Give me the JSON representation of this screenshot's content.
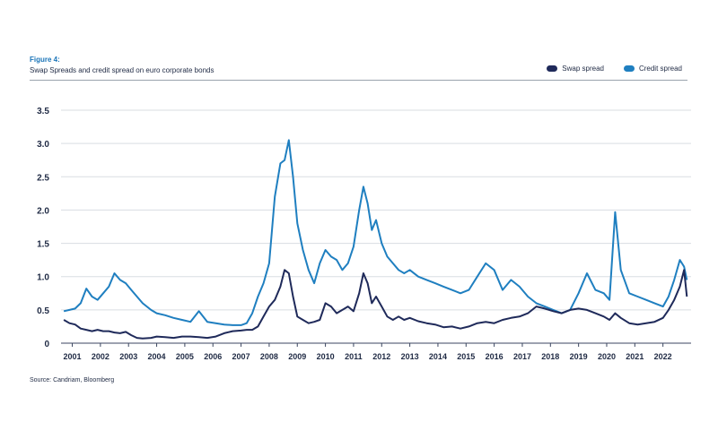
{
  "header": {
    "figure_label": "Figure 4:",
    "title": "Swap Spreads and credit spread on euro corporate bonds"
  },
  "source": "Source: Candriam, Bloomberg",
  "colors": {
    "swap": "#1f2a5a",
    "credit": "#1f7fc0",
    "grid": "#d9dde2"
  },
  "chart_data": {
    "type": "line",
    "title": "Swap Spreads and credit spread on euro corporate bonds",
    "xlabel": "",
    "ylabel": "",
    "xlim": [
      2000.6,
      2023.0
    ],
    "ylim": [
      0,
      3.5
    ],
    "yticks": [
      "0",
      "0.5",
      "1.0",
      "1.5",
      "2.0",
      "2.5",
      "3.0",
      "3.5"
    ],
    "xticks": [
      "2001",
      "2002",
      "2003",
      "2004",
      "2005",
      "2006",
      "2007",
      "2008",
      "2009",
      "2010",
      "2011",
      "2012",
      "2013",
      "2014",
      "2015",
      "2016",
      "2017",
      "2018",
      "2019",
      "2020",
      "2021",
      "2022"
    ],
    "legend_position": "top-right",
    "series": [
      {
        "name": "Swap spread",
        "x": [
          2000.7,
          2000.9,
          2001.1,
          2001.3,
          2001.5,
          2001.7,
          2001.9,
          2002.1,
          2002.3,
          2002.5,
          2002.7,
          2002.9,
          2003.1,
          2003.3,
          2003.5,
          2003.8,
          2004.0,
          2004.3,
          2004.6,
          2004.9,
          2005.2,
          2005.5,
          2005.8,
          2006.1,
          2006.4,
          2006.7,
          2007.0,
          2007.2,
          2007.4,
          2007.6,
          2007.8,
          2008.0,
          2008.2,
          2008.4,
          2008.55,
          2008.7,
          2008.85,
          2009.0,
          2009.2,
          2009.4,
          2009.6,
          2009.8,
          2010.0,
          2010.2,
          2010.4,
          2010.6,
          2010.8,
          2011.0,
          2011.2,
          2011.35,
          2011.5,
          2011.65,
          2011.8,
          2012.0,
          2012.2,
          2012.4,
          2012.6,
          2012.8,
          2013.0,
          2013.3,
          2013.6,
          2013.9,
          2014.2,
          2014.5,
          2014.8,
          2015.1,
          2015.4,
          2015.7,
          2016.0,
          2016.3,
          2016.6,
          2016.9,
          2017.2,
          2017.5,
          2017.8,
          2018.1,
          2018.4,
          2018.7,
          2019.0,
          2019.3,
          2019.6,
          2019.9,
          2020.1,
          2020.3,
          2020.5,
          2020.8,
          2021.1,
          2021.4,
          2021.7,
          2022.0,
          2022.2,
          2022.4,
          2022.6,
          2022.75,
          2022.85
        ],
        "values": [
          0.35,
          0.3,
          0.28,
          0.22,
          0.2,
          0.18,
          0.2,
          0.18,
          0.18,
          0.16,
          0.15,
          0.17,
          0.12,
          0.08,
          0.07,
          0.08,
          0.1,
          0.09,
          0.08,
          0.1,
          0.1,
          0.09,
          0.08,
          0.1,
          0.15,
          0.18,
          0.19,
          0.2,
          0.2,
          0.25,
          0.4,
          0.55,
          0.65,
          0.85,
          1.1,
          1.05,
          0.7,
          0.4,
          0.35,
          0.3,
          0.32,
          0.35,
          0.6,
          0.55,
          0.45,
          0.5,
          0.55,
          0.48,
          0.75,
          1.05,
          0.9,
          0.6,
          0.7,
          0.55,
          0.4,
          0.35,
          0.4,
          0.35,
          0.38,
          0.33,
          0.3,
          0.28,
          0.24,
          0.25,
          0.22,
          0.25,
          0.3,
          0.32,
          0.3,
          0.35,
          0.38,
          0.4,
          0.45,
          0.55,
          0.52,
          0.48,
          0.45,
          0.5,
          0.52,
          0.5,
          0.45,
          0.4,
          0.35,
          0.45,
          0.38,
          0.3,
          0.28,
          0.3,
          0.32,
          0.38,
          0.5,
          0.65,
          0.85,
          1.1,
          0.7
        ]
      },
      {
        "name": "Credit spread",
        "x": [
          2000.7,
          2000.9,
          2001.1,
          2001.3,
          2001.5,
          2001.7,
          2001.9,
          2002.1,
          2002.3,
          2002.5,
          2002.7,
          2002.9,
          2003.1,
          2003.3,
          2003.5,
          2003.8,
          2004.0,
          2004.3,
          2004.6,
          2004.9,
          2005.2,
          2005.5,
          2005.8,
          2006.1,
          2006.4,
          2006.7,
          2007.0,
          2007.2,
          2007.4,
          2007.6,
          2007.8,
          2008.0,
          2008.2,
          2008.4,
          2008.55,
          2008.7,
          2008.85,
          2009.0,
          2009.2,
          2009.4,
          2009.6,
          2009.8,
          2010.0,
          2010.2,
          2010.4,
          2010.6,
          2010.8,
          2011.0,
          2011.2,
          2011.35,
          2011.5,
          2011.65,
          2011.8,
          2012.0,
          2012.2,
          2012.4,
          2012.6,
          2012.8,
          2013.0,
          2013.3,
          2013.6,
          2013.9,
          2014.2,
          2014.5,
          2014.8,
          2015.1,
          2015.4,
          2015.7,
          2016.0,
          2016.3,
          2016.6,
          2016.9,
          2017.2,
          2017.5,
          2017.8,
          2018.1,
          2018.4,
          2018.7,
          2019.0,
          2019.3,
          2019.6,
          2019.9,
          2020.1,
          2020.3,
          2020.5,
          2020.8,
          2021.1,
          2021.4,
          2021.7,
          2022.0,
          2022.2,
          2022.4,
          2022.6,
          2022.75,
          2022.85
        ],
        "values": [
          0.48,
          0.5,
          0.52,
          0.6,
          0.82,
          0.7,
          0.65,
          0.75,
          0.85,
          1.05,
          0.95,
          0.9,
          0.8,
          0.7,
          0.6,
          0.5,
          0.45,
          0.42,
          0.38,
          0.35,
          0.32,
          0.48,
          0.32,
          0.3,
          0.28,
          0.27,
          0.27,
          0.3,
          0.45,
          0.7,
          0.9,
          1.2,
          2.2,
          2.7,
          2.75,
          3.05,
          2.5,
          1.8,
          1.4,
          1.1,
          0.9,
          1.2,
          1.4,
          1.3,
          1.25,
          1.1,
          1.2,
          1.45,
          2.0,
          2.35,
          2.1,
          1.7,
          1.85,
          1.5,
          1.3,
          1.2,
          1.1,
          1.05,
          1.1,
          1.0,
          0.95,
          0.9,
          0.85,
          0.8,
          0.75,
          0.8,
          1.0,
          1.2,
          1.1,
          0.8,
          0.95,
          0.85,
          0.7,
          0.6,
          0.55,
          0.5,
          0.45,
          0.5,
          0.75,
          1.05,
          0.8,
          0.75,
          0.65,
          1.97,
          1.1,
          0.75,
          0.7,
          0.65,
          0.6,
          0.55,
          0.7,
          0.95,
          1.25,
          1.15,
          0.95
        ]
      }
    ]
  }
}
